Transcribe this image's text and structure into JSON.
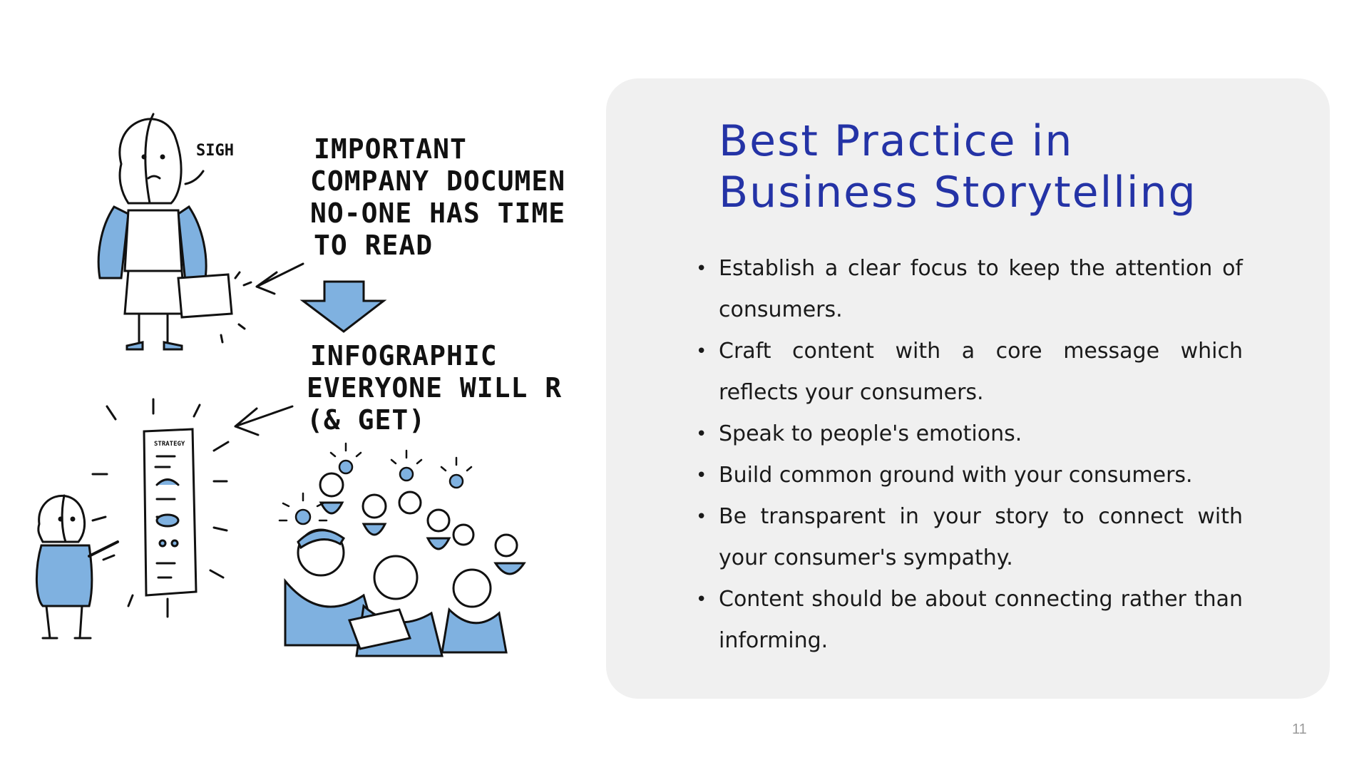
{
  "illustration": {
    "sigh": "SIGH",
    "top_caption": [
      "IMPORTANT",
      "COMPANY DOCUMENT",
      "NO-ONE HAS TIME",
      "TO READ"
    ],
    "bottom_caption": [
      "INFOGRAPHIC",
      "EVERYONE WILL READ",
      "(& GET)"
    ],
    "poster_heading": "STRATEGY",
    "accent_color": "#7fb1e0"
  },
  "panel": {
    "title_line1": "Best Practice in",
    "title_line2": "Business Storytelling",
    "bullets": [
      "Establish a clear focus to keep the attention of consumers.",
      "Craft content with a core message which reflects your consumers.",
      "Speak to people's emotions.",
      "Build common ground with your consumers.",
      "Be transparent in your story to connect with your consumer's sympathy.",
      "Content should be about connecting rather than informing."
    ],
    "title_color": "#2433a6",
    "background_color": "#f0f0f0"
  },
  "page_number": "11"
}
